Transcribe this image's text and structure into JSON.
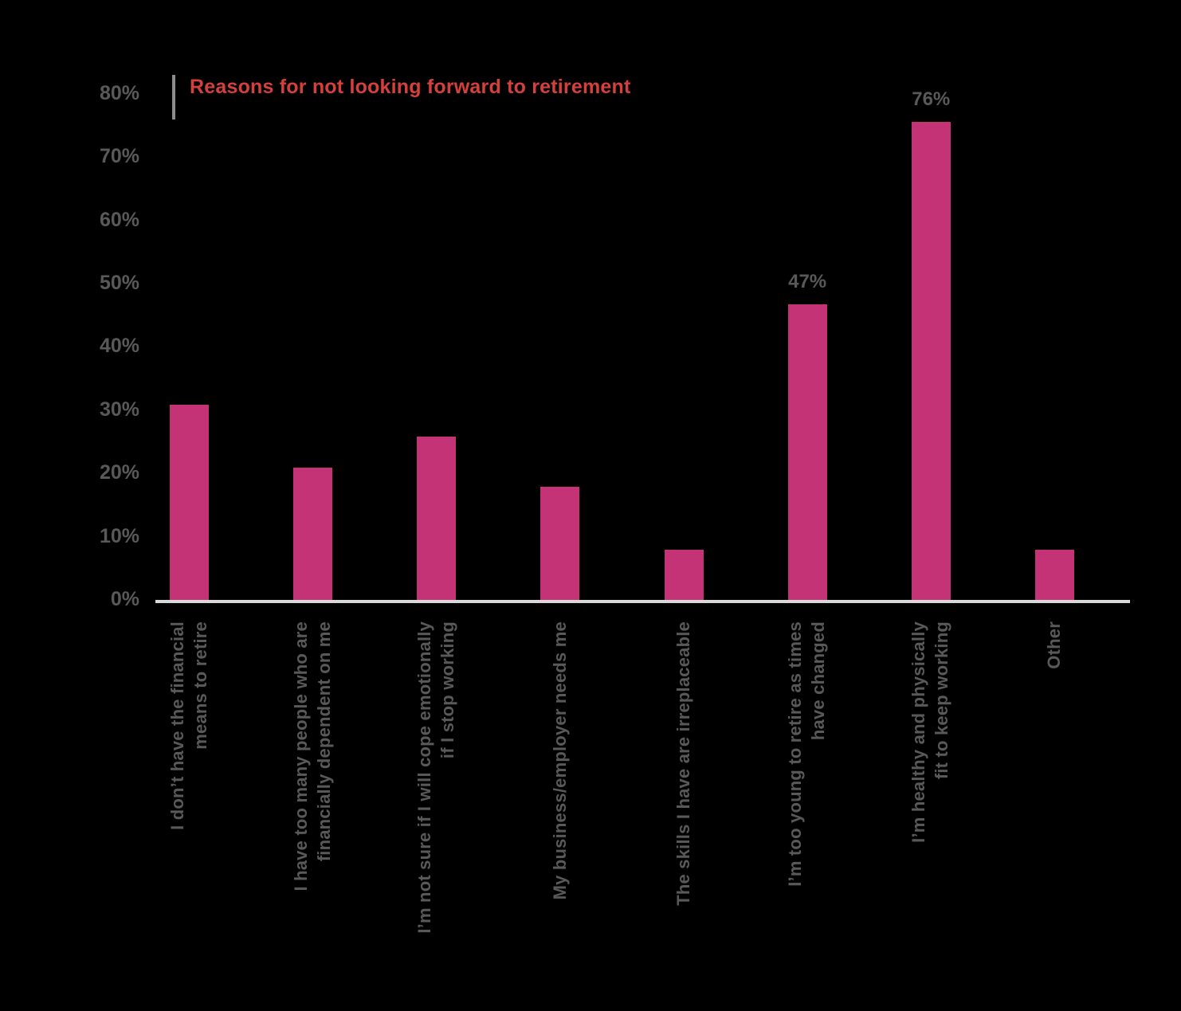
{
  "page": {
    "background": "#000000"
  },
  "chart_data": {
    "type": "bar",
    "title": "Reasons for not looking forward to retirement",
    "categories": [
      "I don’t have the financial\nmeans to retire",
      "I have too many people who are\nfinancially dependent on me",
      "I’m not sure if I will cope emotionally\nif I stop working",
      "My business/employer needs me",
      "The skills I have  are irreplaceable",
      "I’m too young to retire as times\nhave changed",
      "I’m healthy and physically\nfit to keep working",
      "Other"
    ],
    "values": [
      31,
      21,
      26,
      18,
      8,
      47,
      76,
      8
    ],
    "data_labels": [
      "",
      "",
      "",
      "",
      "",
      "47%",
      "76%",
      ""
    ],
    "yticks": [
      80,
      70,
      60,
      50,
      40,
      30,
      20,
      10,
      0
    ],
    "ytick_suffix": "%",
    "ylim": [
      0,
      80
    ],
    "xlabel": "",
    "ylabel": "",
    "grid": false,
    "legend": false,
    "colors": {
      "bar": "#C53377",
      "title": "#D4403C",
      "axis_text": "#595959",
      "data_label_text": "#595959",
      "axis_line": "#D9D9D9",
      "title_accent": "#8C8C8C",
      "background": "#000000"
    }
  }
}
